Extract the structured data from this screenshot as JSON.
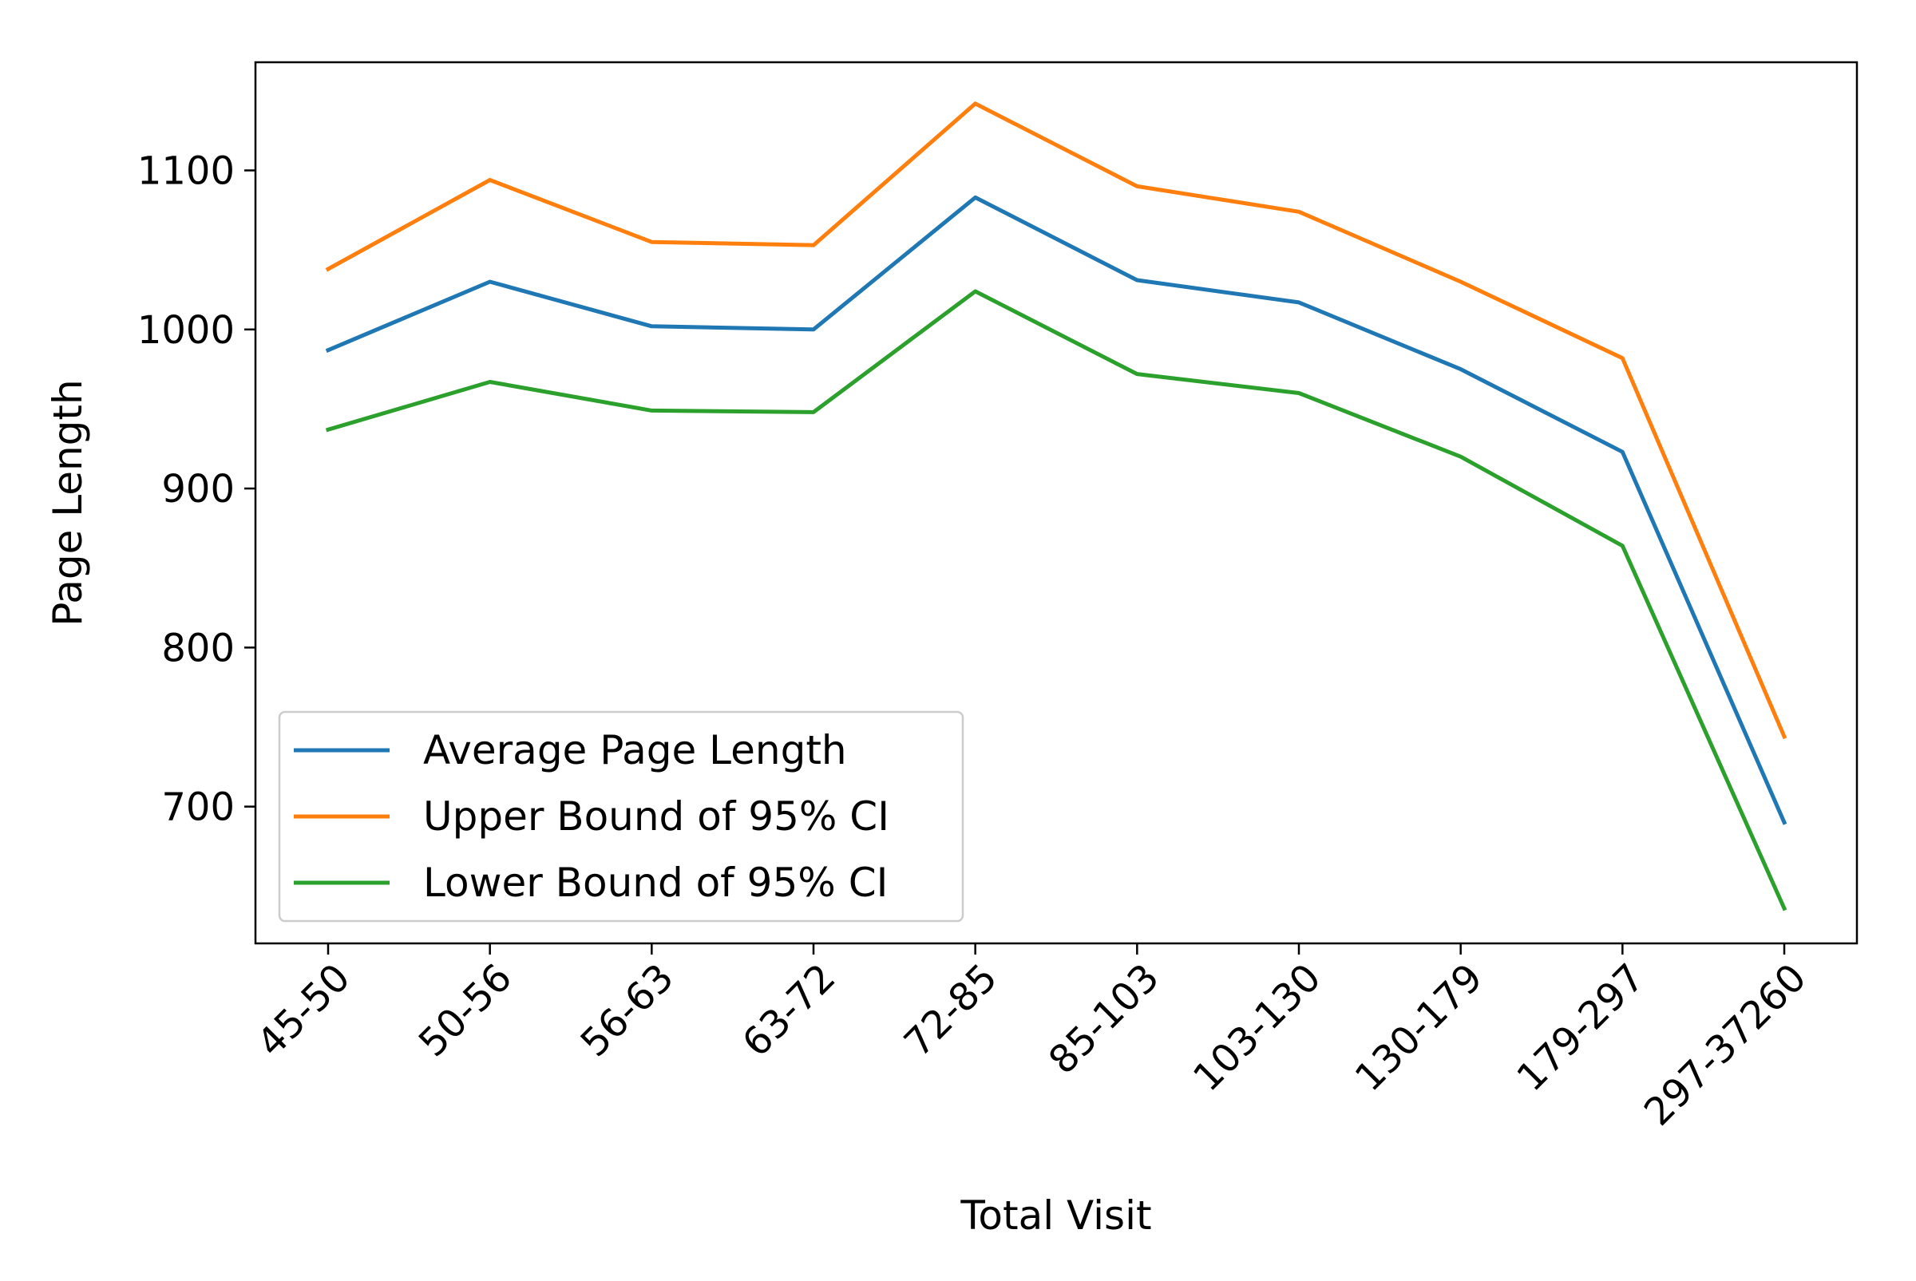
{
  "chart_data": {
    "type": "line",
    "title": "",
    "xlabel": "Total Visit",
    "ylabel": "Page Length",
    "categories": [
      "45-50",
      "50-56",
      "56-63",
      "63-72",
      "72-85",
      "85-103",
      "103-130",
      "130-179",
      "179-297",
      "297-37260"
    ],
    "ylim": [
      614,
      1168
    ],
    "yticks": [
      700,
      800,
      900,
      1000,
      1100
    ],
    "grid": false,
    "legend_position": "lower-left",
    "series": [
      {
        "name": "Average Page Length",
        "color": "#1f77b4",
        "values": [
          987,
          1030,
          1002,
          1000,
          1083,
          1031,
          1017,
          975,
          923,
          690
        ]
      },
      {
        "name": "Upper Bound of 95% CI",
        "color": "#ff7f0e",
        "values": [
          1038,
          1094,
          1055,
          1053,
          1142,
          1090,
          1074,
          1030,
          982,
          744
        ]
      },
      {
        "name": "Lower Bound of 95% CI",
        "color": "#2ca02c",
        "values": [
          937,
          967,
          949,
          948,
          1024,
          972,
          960,
          920,
          864,
          636
        ]
      }
    ]
  }
}
